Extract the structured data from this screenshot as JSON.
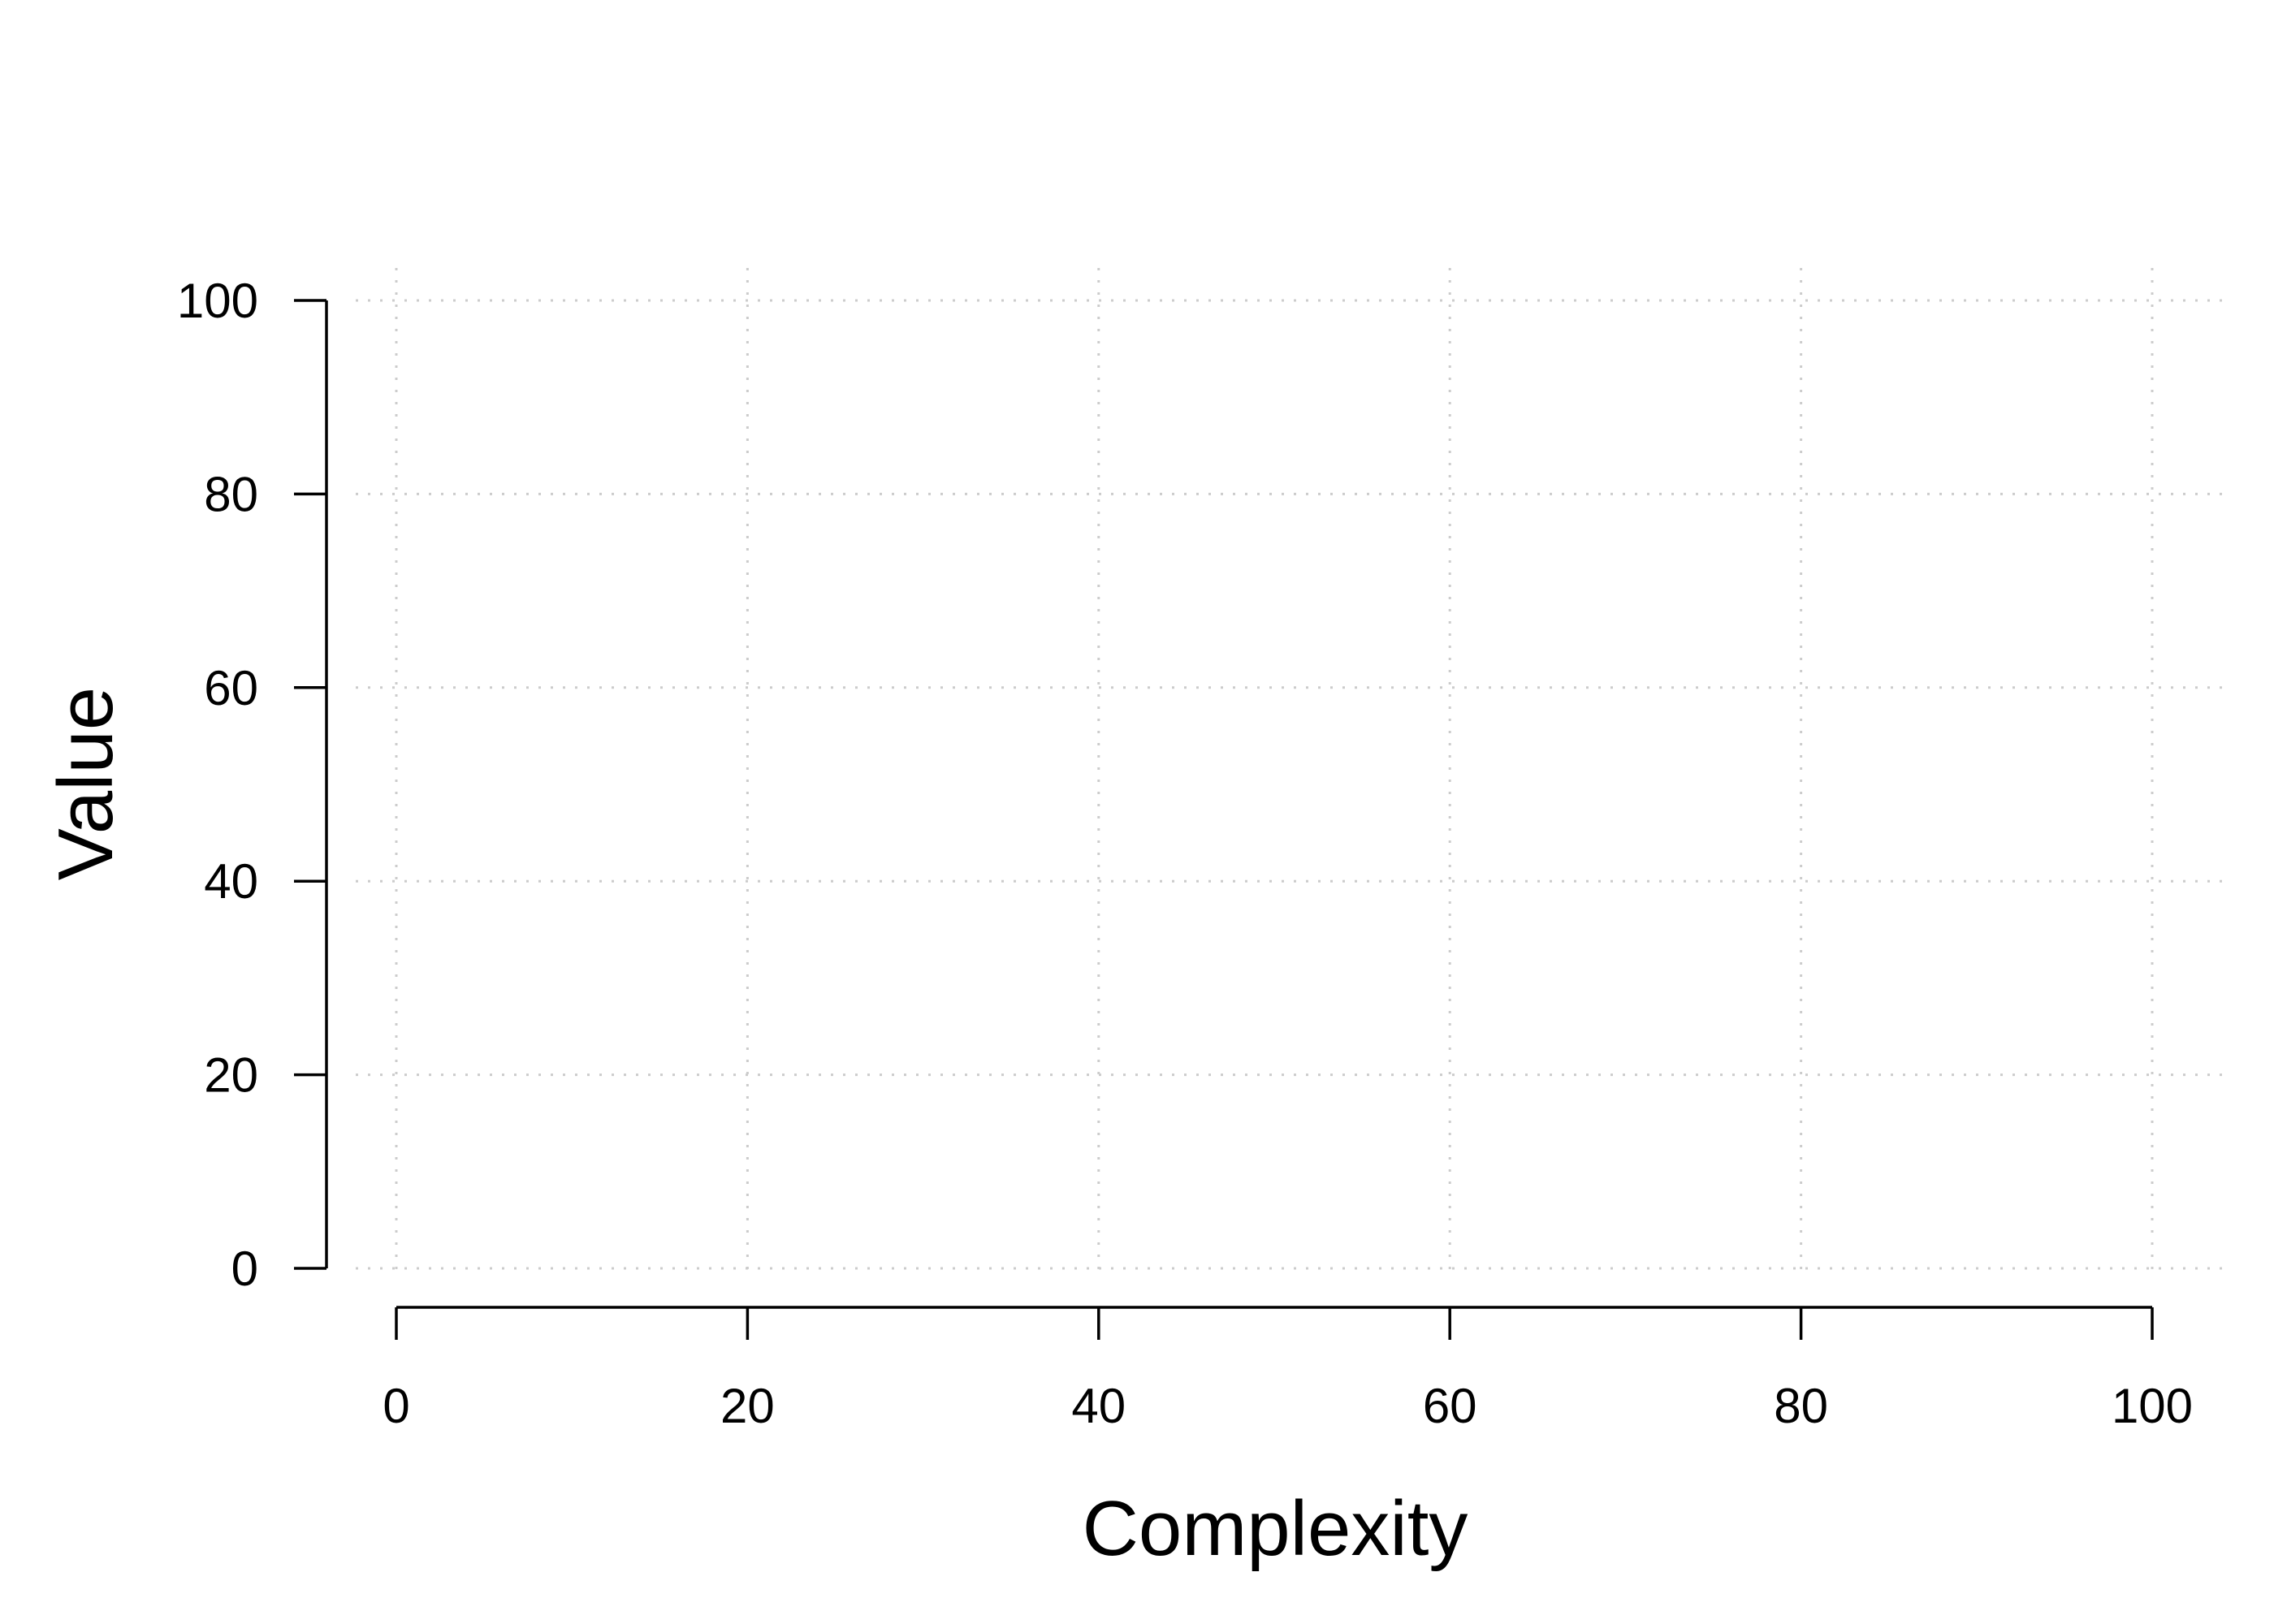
{
  "chart_data": {
    "type": "scatter",
    "title": "",
    "xlabel": "Complexity",
    "ylabel": "Value",
    "xlim": [
      0,
      100
    ],
    "ylim": [
      0,
      100
    ],
    "x_ticks": [
      "0",
      "20",
      "40",
      "60",
      "80",
      "100"
    ],
    "y_ticks": [
      "0",
      "20",
      "40",
      "60",
      "80",
      "100"
    ],
    "grid": true,
    "grid_style": "dotted",
    "grid_color": "#cccccc",
    "axis_color": "#000000",
    "series": []
  }
}
